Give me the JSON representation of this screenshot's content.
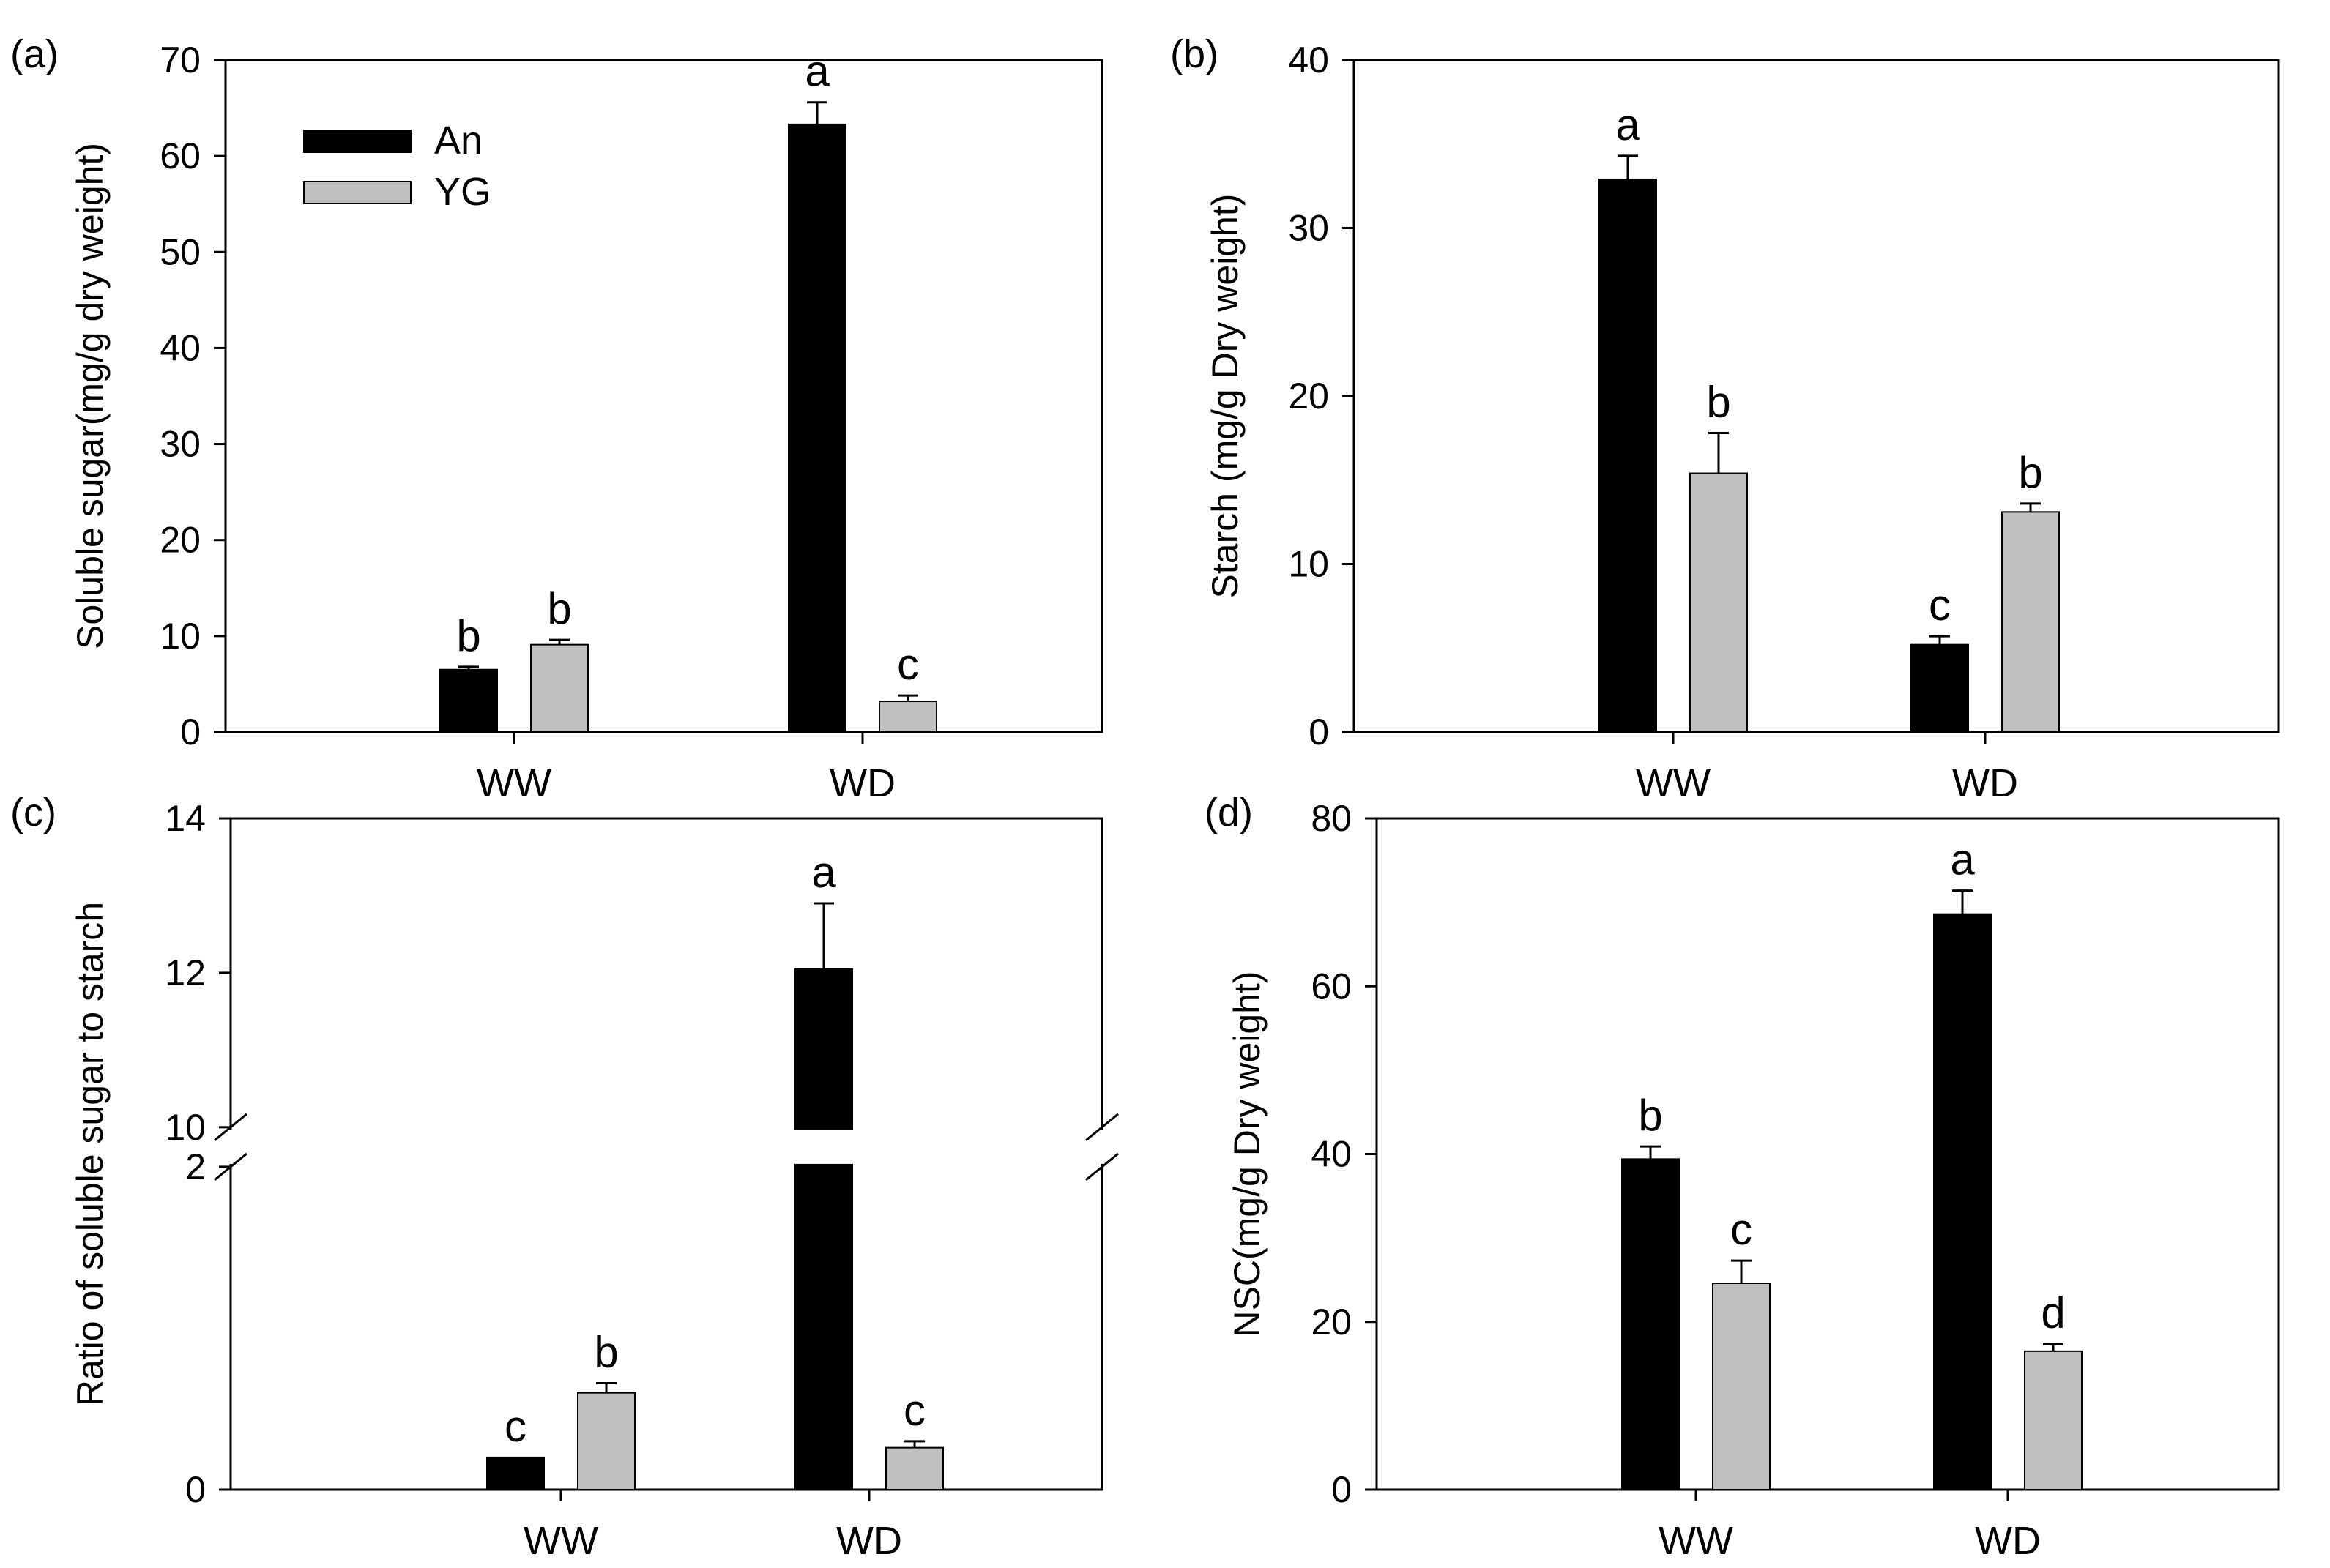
{
  "chart_data": [
    {
      "id": "a",
      "type": "bar",
      "panel_label": "(a)",
      "ylabel": "Soluble sugar(mg/g dry weight)",
      "xlabel": "",
      "categories": [
        "WW",
        "WD"
      ],
      "ylim": [
        0,
        70
      ],
      "yticks": [
        "0",
        "10",
        "20",
        "30",
        "40",
        "50",
        "60",
        "70"
      ],
      "series": [
        {
          "name": "An",
          "color": "#000000",
          "values": [
            6.5,
            63.3
          ],
          "errors": [
            0.3,
            2.3
          ],
          "letters": [
            "b",
            "a"
          ]
        },
        {
          "name": "YG",
          "color": "#c0c0c0",
          "values": [
            9.1,
            3.2
          ],
          "errors": [
            0.5,
            0.6
          ],
          "letters": [
            "b",
            "c"
          ]
        }
      ],
      "legend": {
        "placement": "top-left",
        "entries": [
          "An",
          "YG"
        ]
      }
    },
    {
      "id": "b",
      "type": "bar",
      "panel_label": "(b)",
      "ylabel": "Starch (mg/g Dry weight)",
      "xlabel": "",
      "categories": [
        "WW",
        "WD"
      ],
      "ylim": [
        0,
        40
      ],
      "yticks": [
        "0",
        "10",
        "20",
        "30",
        "40"
      ],
      "series": [
        {
          "name": "An",
          "color": "#000000",
          "values": [
            32.9,
            5.2
          ],
          "errors": [
            1.4,
            0.5
          ],
          "letters": [
            "a",
            "c"
          ]
        },
        {
          "name": "YG",
          "color": "#c0c0c0",
          "values": [
            15.4,
            13.1
          ],
          "errors": [
            2.4,
            0.5
          ],
          "letters": [
            "b",
            "b"
          ]
        }
      ]
    },
    {
      "id": "c",
      "type": "bar",
      "panel_label": "(c)",
      "ylabel": "Ratio of soluble sugar to starch",
      "xlabel": "",
      "categories": [
        "WW",
        "WD"
      ],
      "broken_axis": {
        "lower": [
          0,
          2
        ],
        "upper": [
          10,
          14
        ]
      },
      "yticks_lower": [
        "0",
        "2"
      ],
      "yticks_upper": [
        "10",
        "12",
        "14"
      ],
      "series": [
        {
          "name": "An",
          "color": "#000000",
          "values": [
            0.2,
            12.05
          ],
          "errors": [
            0.0,
            0.85
          ],
          "letters": [
            "c",
            "a"
          ]
        },
        {
          "name": "YG",
          "color": "#c0c0c0",
          "values": [
            0.6,
            0.26
          ],
          "errors": [
            0.06,
            0.04
          ],
          "letters": [
            "b",
            "c"
          ]
        }
      ]
    },
    {
      "id": "d",
      "type": "bar",
      "panel_label": "(d)",
      "ylabel": "NSC(mg/g Dry weight)",
      "xlabel": "",
      "categories": [
        "WW",
        "WD"
      ],
      "ylim": [
        0,
        80
      ],
      "yticks": [
        "0",
        "20",
        "40",
        "60",
        "80"
      ],
      "series": [
        {
          "name": "An",
          "color": "#000000",
          "values": [
            39.4,
            68.6
          ],
          "errors": [
            1.5,
            2.8
          ],
          "letters": [
            "b",
            "a"
          ]
        },
        {
          "name": "YG",
          "color": "#c0c0c0",
          "values": [
            24.6,
            16.5
          ],
          "errors": [
            2.7,
            0.9
          ],
          "letters": [
            "c",
            "d"
          ]
        }
      ]
    }
  ]
}
